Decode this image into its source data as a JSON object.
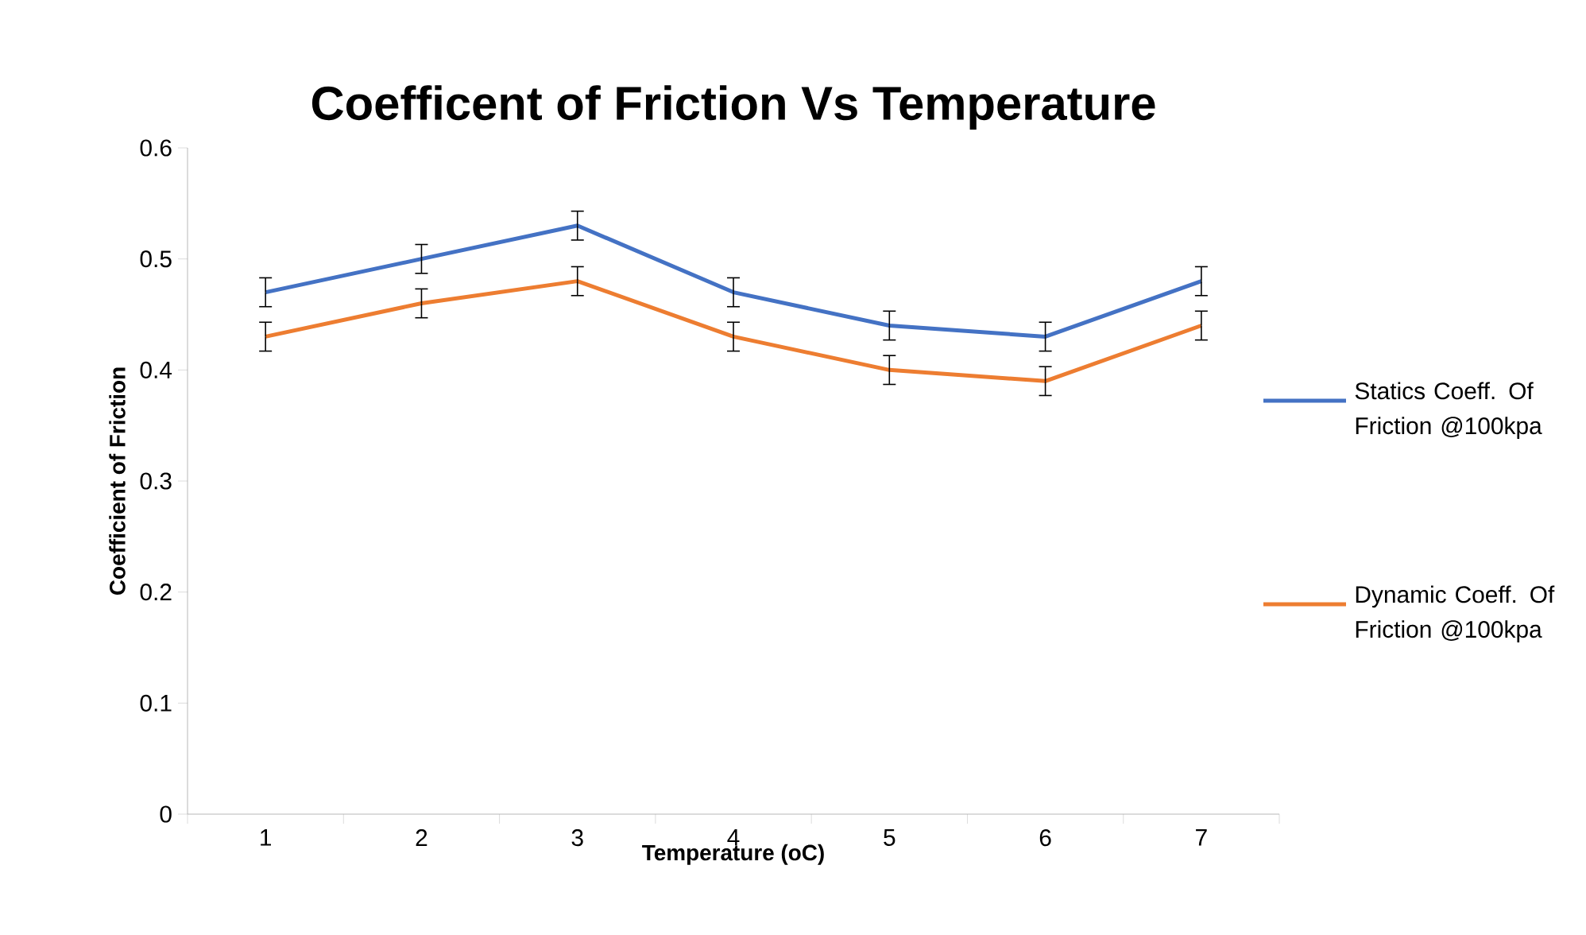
{
  "chart_data": {
    "type": "line",
    "title": "Coefficent of Friction Vs Temperature",
    "xlabel": "Temperature (oC)",
    "ylabel": "Coefficient of Friction",
    "categories": [
      "1",
      "2",
      "3",
      "4",
      "5",
      "6",
      "7"
    ],
    "series": [
      {
        "name": "Statics Coeff. Of Friction @100kpa",
        "color": "#4472c4",
        "values": [
          0.47,
          0.5,
          0.53,
          0.47,
          0.44,
          0.43,
          0.48
        ],
        "errors": [
          0.013,
          0.013,
          0.013,
          0.013,
          0.013,
          0.013,
          0.013
        ]
      },
      {
        "name": "Dynamic Coeff. Of Friction @100kpa",
        "color": "#ed7d31",
        "values": [
          0.43,
          0.46,
          0.48,
          0.43,
          0.4,
          0.39,
          0.44
        ],
        "errors": [
          0.013,
          0.013,
          0.013,
          0.013,
          0.013,
          0.013,
          0.013
        ]
      }
    ],
    "ylim": [
      0,
      0.6
    ],
    "yticks": [
      0,
      0.1,
      0.2,
      0.3,
      0.4,
      0.5,
      0.6
    ],
    "grid": false,
    "legend": "right",
    "marker": "none",
    "line_style": "solid"
  }
}
